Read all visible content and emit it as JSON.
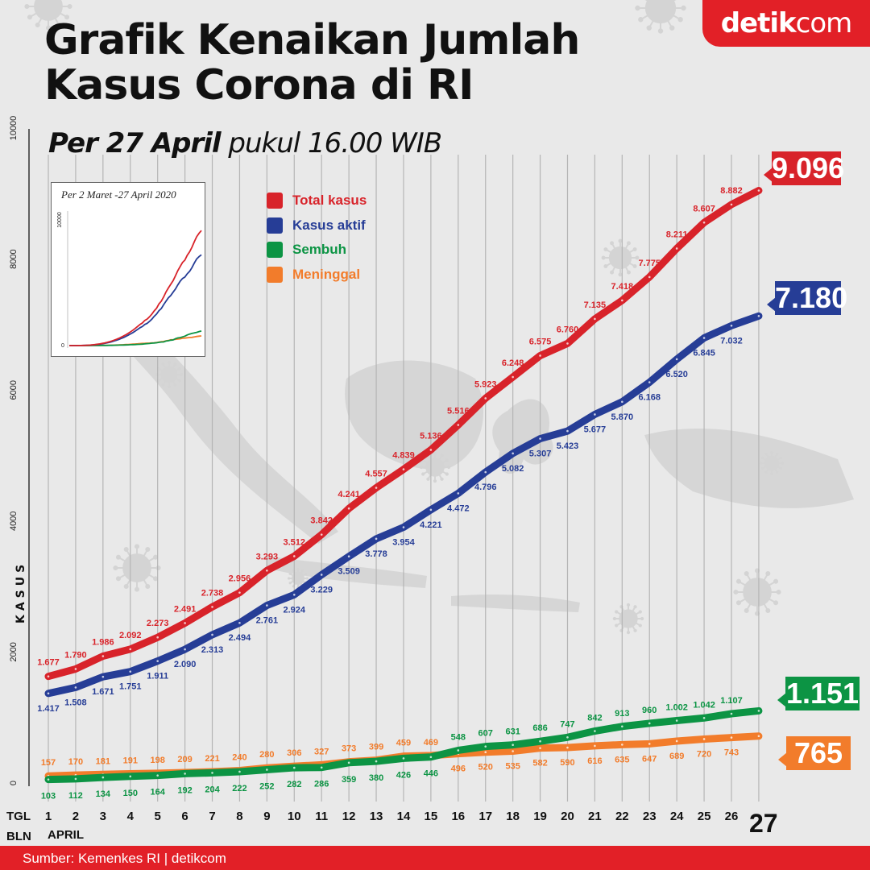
{
  "header": {
    "title_line1": "Grafik Kenaikan Jumlah",
    "title_line2": "Kasus Corona di RI",
    "subtitle_bold": "Per 27 April",
    "subtitle_rest": " pukul 16.00 WIB",
    "logo_bold": "detik",
    "logo_light": "com"
  },
  "inset": {
    "title": "Per 2 Maret -27 April 2020",
    "ytick_top": "10000",
    "ytick_bottom": "0"
  },
  "axis": {
    "tgl_label": "TGL",
    "bln_label": "BLN",
    "month": "APRIL",
    "y_title": "KASUS",
    "last_day": "27"
  },
  "colors": {
    "total": "#d8232a",
    "aktif": "#263d96",
    "sembuh": "#0c9444",
    "meninggal": "#f27c2b",
    "footer": "#e22027"
  },
  "footer": {
    "source": "Sumber: Kemenkes RI | detikcom"
  },
  "callouts": {
    "total": "9.096",
    "aktif": "7.180",
    "sembuh": "1.151",
    "meninggal": "765"
  },
  "chart_data": {
    "type": "line",
    "ylabel": "KASUS",
    "ylim": [
      0,
      10000
    ],
    "y_ticks": [
      "0",
      "2000",
      "4000",
      "6000",
      "8000",
      "10000"
    ],
    "x": [
      "1",
      "2",
      "3",
      "4",
      "5",
      "6",
      "7",
      "8",
      "9",
      "10",
      "11",
      "12",
      "13",
      "14",
      "15",
      "16",
      "17",
      "18",
      "19",
      "20",
      "21",
      "22",
      "23",
      "24",
      "25",
      "26",
      "27"
    ],
    "grid": true,
    "legend_position": "top-left",
    "series": [
      {
        "name": "Total kasus",
        "values": [
          1677,
          1790,
          1986,
          2092,
          2273,
          2491,
          2738,
          2956,
          3293,
          3512,
          3842,
          4241,
          4557,
          4839,
          5136,
          5516,
          5923,
          6248,
          6575,
          6760,
          7135,
          7418,
          7775,
          8211,
          8607,
          8882,
          9096
        ],
        "labels": [
          "1.677",
          "1.790",
          "1.986",
          "2.092",
          "2.273",
          "2.491",
          "2.738",
          "2.956",
          "3.293",
          "3.512",
          "3.842",
          "4.241",
          "4.557",
          "4.839",
          "5.136",
          "5.516",
          "5.923",
          "6.248",
          "6.575",
          "6.760",
          "7.135",
          "7.418",
          "7.775",
          "8.211",
          "8.607",
          "8.882",
          ""
        ]
      },
      {
        "name": "Kasus aktif",
        "values": [
          1417,
          1508,
          1671,
          1751,
          1911,
          2090,
          2313,
          2494,
          2761,
          2924,
          3229,
          3509,
          3778,
          3954,
          4221,
          4472,
          4796,
          5082,
          5307,
          5423,
          5677,
          5870,
          6168,
          6520,
          6845,
          7032,
          7180
        ],
        "labels": [
          "1.417",
          "1.508",
          "1.671",
          "1.751",
          "1.911",
          "2.090",
          "2.313",
          "2.494",
          "2.761",
          "2.924",
          "3.229",
          "3.509",
          "3.778",
          "3.954",
          "4.221",
          "4.472",
          "4.796",
          "5.082",
          "5.307",
          "5.423",
          "5.677",
          "5.870",
          "6.168",
          "6.520",
          "6.845",
          "7.032",
          ""
        ]
      },
      {
        "name": "Sembuh",
        "values": [
          103,
          112,
          134,
          150,
          164,
          192,
          204,
          222,
          252,
          282,
          286,
          359,
          380,
          426,
          446,
          548,
          607,
          631,
          686,
          747,
          842,
          913,
          960,
          1002,
          1042,
          1107,
          1151
        ],
        "labels": [
          "103",
          "112",
          "134",
          "150",
          "164",
          "192",
          "204",
          "222",
          "252",
          "282",
          "286",
          "359",
          "380",
          "426",
          "446",
          "548",
          "607",
          "631",
          "686",
          "747",
          "842",
          "913",
          "960",
          "1.002",
          "1.042",
          "1.107",
          ""
        ]
      },
      {
        "name": "Meninggal",
        "values": [
          157,
          170,
          181,
          191,
          198,
          209,
          221,
          240,
          280,
          306,
          327,
          373,
          399,
          459,
          469,
          496,
          520,
          535,
          582,
          590,
          616,
          635,
          647,
          689,
          720,
          743,
          765
        ],
        "labels": [
          "157",
          "170",
          "181",
          "191",
          "198",
          "209",
          "221",
          "240",
          "280",
          "306",
          "327",
          "373",
          "399",
          "459",
          "469",
          "496",
          "520",
          "535",
          "582",
          "590",
          "616",
          "635",
          "647",
          "689",
          "720",
          "743",
          ""
        ]
      }
    ]
  }
}
